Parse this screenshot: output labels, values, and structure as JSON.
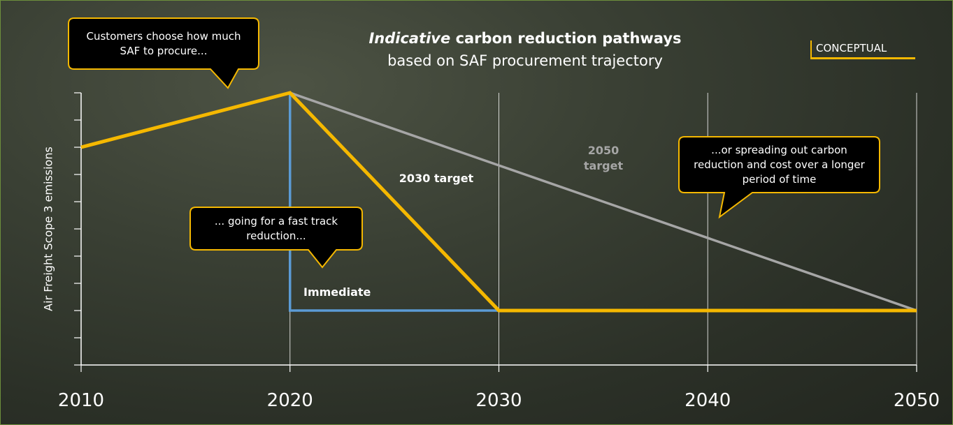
{
  "chart_data": {
    "type": "line",
    "title_emphasis": "Indicative",
    "title": "carbon reduction pathways",
    "subtitle": "based on SAF procurement trajectory",
    "tag": "CONCEPTUAL",
    "y_label": "Air Freight Scope 3 emissions",
    "xlim": [
      2010,
      2050
    ],
    "xticks": [
      2010,
      2020,
      2030,
      2040,
      2050
    ],
    "ylim": [
      0,
      10
    ],
    "yticks": [
      0,
      1,
      2,
      3,
      4,
      5,
      6,
      7,
      8,
      9,
      10
    ],
    "grid": true,
    "series": [
      {
        "name": "2050 target",
        "color": "#a6a6a6",
        "x": [
          2010,
          2020,
          2050
        ],
        "values": [
          8,
          10,
          2
        ]
      },
      {
        "name": "Immediate",
        "color": "#5b9bd5",
        "x": [
          2020,
          2020,
          2030
        ],
        "values": [
          10,
          2,
          2
        ]
      },
      {
        "name": "2030 target",
        "color": "#f5b800",
        "x": [
          2010,
          2020,
          2030,
          2050
        ],
        "values": [
          8,
          10,
          2,
          2
        ]
      }
    ],
    "annotations": [
      "Customers choose how much SAF to procure...",
      "... going for a fast track reduction...",
      "...or spreading out carbon reduction and cost over a longer period of time"
    ]
  }
}
